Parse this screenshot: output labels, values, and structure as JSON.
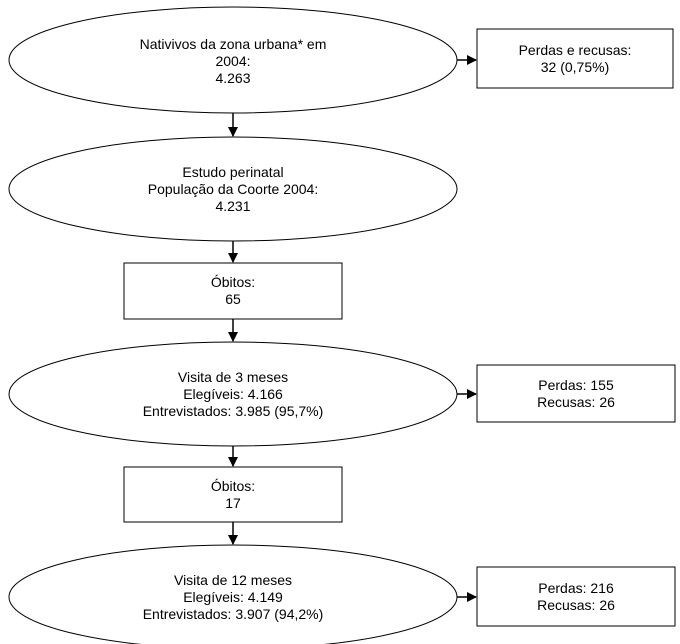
{
  "nodes": {
    "nativivos": {
      "line1": "Nativivos da zona urbana* em",
      "line2": "2004:",
      "line3": "4.263"
    },
    "perdas_recusas_1": {
      "line1": "Perdas e recusas:",
      "line2": "32 (0,75%)"
    },
    "perinatal": {
      "line1": "Estudo perinatal",
      "line2": "População da Coorte 2004:",
      "line3": "4.231"
    },
    "obitos_1": {
      "line1": "Óbitos:",
      "line2": "65"
    },
    "visita_3": {
      "line1": "Visita de 3 meses",
      "line2": "Elegíveis: 4.166",
      "line3": "Entrevistados: 3.985 (95,7%)"
    },
    "perdas_3": {
      "line1": "Perdas: 155",
      "line2": "Recusas: 26"
    },
    "obitos_2": {
      "line1": "Óbitos:",
      "line2": "17"
    },
    "visita_12": {
      "line1": "Visita de 12 meses",
      "line2": "Elegíveis: 4.149",
      "line3": "Entrevistados: 3.907 (94,2%)"
    },
    "perdas_12": {
      "line1": "Perdas: 216",
      "line2": "Recusas: 26"
    }
  }
}
